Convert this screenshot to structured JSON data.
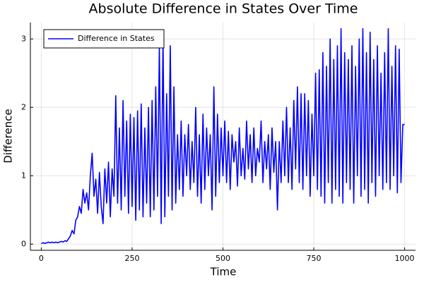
{
  "chart_data": {
    "type": "line",
    "title": "Absolute Difference in States Over Time",
    "x_label": "Time",
    "y_label": "Difference",
    "xlim": [
      -30,
      1030
    ],
    "ylim": [
      -0.09,
      3.24
    ],
    "xticks": [
      0,
      250,
      500,
      750,
      1000
    ],
    "yticks": [
      0,
      1,
      2,
      3
    ],
    "grid": true,
    "legend_position": "top-left",
    "x": [
      0,
      5,
      10,
      15,
      20,
      25,
      30,
      35,
      40,
      45,
      50,
      55,
      60,
      65,
      70,
      75,
      80,
      85,
      90,
      95,
      100,
      105,
      110,
      115,
      120,
      125,
      130,
      135,
      140,
      145,
      150,
      155,
      160,
      165,
      170,
      175,
      180,
      185,
      190,
      195,
      200,
      205,
      210,
      215,
      220,
      225,
      230,
      235,
      240,
      245,
      250,
      255,
      260,
      265,
      270,
      275,
      280,
      285,
      290,
      295,
      300,
      305,
      310,
      315,
      320,
      325,
      330,
      335,
      340,
      345,
      350,
      355,
      360,
      365,
      370,
      375,
      380,
      385,
      390,
      395,
      400,
      405,
      410,
      415,
      420,
      425,
      430,
      435,
      440,
      445,
      450,
      455,
      460,
      465,
      470,
      475,
      480,
      485,
      490,
      495,
      500,
      505,
      510,
      515,
      520,
      525,
      530,
      535,
      540,
      545,
      550,
      555,
      560,
      565,
      570,
      575,
      580,
      585,
      590,
      595,
      600,
      605,
      610,
      615,
      620,
      625,
      630,
      635,
      640,
      645,
      650,
      655,
      660,
      665,
      670,
      675,
      680,
      685,
      690,
      695,
      700,
      705,
      710,
      715,
      720,
      725,
      730,
      735,
      740,
      745,
      750,
      755,
      760,
      765,
      770,
      775,
      780,
      785,
      790,
      795,
      800,
      805,
      810,
      815,
      820,
      825,
      830,
      835,
      840,
      845,
      850,
      855,
      860,
      865,
      870,
      875,
      880,
      885,
      890,
      895,
      900,
      905,
      910,
      915,
      920,
      925,
      930,
      935,
      940,
      945,
      950,
      955,
      960,
      965,
      970,
      975,
      980,
      985,
      990,
      995,
      1000
    ],
    "series": [
      {
        "name": "Difference in States",
        "color": "#0000ff",
        "values": [
          0.01,
          0.02,
          0.01,
          0.02,
          0.03,
          0.02,
          0.03,
          0.02,
          0.03,
          0.02,
          0.03,
          0.04,
          0.03,
          0.05,
          0.04,
          0.08,
          0.12,
          0.2,
          0.15,
          0.35,
          0.4,
          0.55,
          0.45,
          0.8,
          0.6,
          0.75,
          0.5,
          1.0,
          1.33,
          0.7,
          0.95,
          0.45,
          1.05,
          0.55,
          0.3,
          1.1,
          0.6,
          1.2,
          0.4,
          1.1,
          0.7,
          2.17,
          0.6,
          1.7,
          0.5,
          2.1,
          0.7,
          1.8,
          0.45,
          1.9,
          0.55,
          1.85,
          0.35,
          1.95,
          0.5,
          2.05,
          0.4,
          1.7,
          0.6,
          2.0,
          0.4,
          2.1,
          0.5,
          2.3,
          0.7,
          2.9,
          0.3,
          3.0,
          0.4,
          2.2,
          0.7,
          2.9,
          0.5,
          2.3,
          0.6,
          1.6,
          0.8,
          1.8,
          0.7,
          1.6,
          1.0,
          1.75,
          0.8,
          1.5,
          0.9,
          2.0,
          0.7,
          1.6,
          0.6,
          1.9,
          0.8,
          1.7,
          1.0,
          1.6,
          0.5,
          2.3,
          0.7,
          1.9,
          0.9,
          1.7,
          1.0,
          1.8,
          0.9,
          1.65,
          0.8,
          1.6,
          1.2,
          1.5,
          0.85,
          1.7,
          1.0,
          1.4,
          0.95,
          1.8,
          1.1,
          1.6,
          0.9,
          1.7,
          1.0,
          1.4,
          1.2,
          1.8,
          0.9,
          1.5,
          1.1,
          1.6,
          0.8,
          1.7,
          1.05,
          1.5,
          0.5,
          1.5,
          0.9,
          1.8,
          1.0,
          2.0,
          0.9,
          1.7,
          0.8,
          2.1,
          1.1,
          2.3,
          0.9,
          2.2,
          0.8,
          2.2,
          1.0,
          2.1,
          0.7,
          1.9,
          1.0,
          2.5,
          0.8,
          2.55,
          0.7,
          2.8,
          0.6,
          2.6,
          0.9,
          3.0,
          0.6,
          2.7,
          0.8,
          2.9,
          0.7,
          3.15,
          0.6,
          2.8,
          0.9,
          2.7,
          0.8,
          2.9,
          0.6,
          2.6,
          1.0,
          3.0,
          0.7,
          3.15,
          0.8,
          2.8,
          0.6,
          3.1,
          0.9,
          2.7,
          0.7,
          2.9,
          1.0,
          2.5,
          0.8,
          2.8,
          0.9,
          3.15,
          0.8,
          2.6,
          1.0,
          2.9,
          0.75,
          2.85,
          0.9,
          1.75,
          1.75
        ]
      }
    ]
  }
}
